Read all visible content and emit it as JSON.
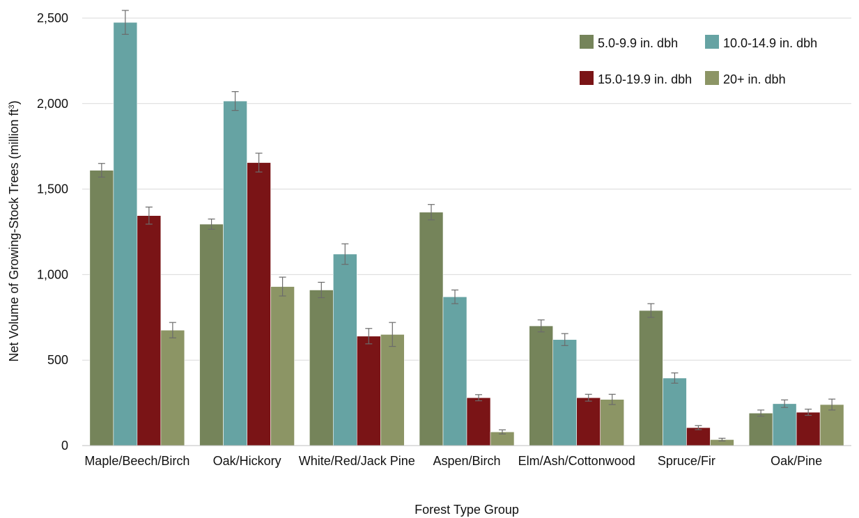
{
  "chart_data": {
    "type": "bar",
    "title": "",
    "xlabel": "Forest Type Group",
    "ylabel_main": "Net Volume of Growing-Stock Trees (million ft",
    "ylabel_sup": "3",
    "ylabel_tail": ")",
    "ylim": [
      0,
      2500
    ],
    "yticks": [
      0,
      500,
      1000,
      1500,
      2000,
      2500
    ],
    "ytick_labels": [
      "0",
      "500",
      "1,000",
      "1,500",
      "2,000",
      "2,500"
    ],
    "grid": true,
    "legend_position": "top-right",
    "categories": [
      "Maple/Beech/Birch",
      "Oak/Hickory",
      "White/Red/Jack Pine",
      "Aspen/Birch",
      "Elm/Ash/Cottonwood",
      "Spruce/Fir",
      "Oak/Pine"
    ],
    "series": [
      {
        "name": "5.0-9.9 in. dbh",
        "color": "#75845a",
        "values": [
          1610,
          1295,
          910,
          1365,
          700,
          790,
          190
        ],
        "errors": [
          40,
          30,
          45,
          45,
          35,
          40,
          18
        ]
      },
      {
        "name": "10.0-14.9 in. dbh",
        "color": "#66a3a3",
        "values": [
          2475,
          2015,
          1120,
          870,
          620,
          395,
          245
        ],
        "errors": [
          70,
          55,
          60,
          40,
          35,
          30,
          22
        ]
      },
      {
        "name": "15.0-19.9 in. dbh",
        "color": "#7a1416",
        "values": [
          1345,
          1655,
          640,
          280,
          280,
          105,
          195
        ],
        "errors": [
          50,
          55,
          45,
          18,
          20,
          12,
          18
        ]
      },
      {
        "name": "20+ in. dbh",
        "color": "#8c9565",
        "values": [
          675,
          930,
          650,
          80,
          270,
          35,
          240
        ],
        "errors": [
          45,
          55,
          70,
          12,
          30,
          8,
          32
        ]
      }
    ],
    "legend_order": [
      0,
      2,
      1,
      3
    ]
  }
}
